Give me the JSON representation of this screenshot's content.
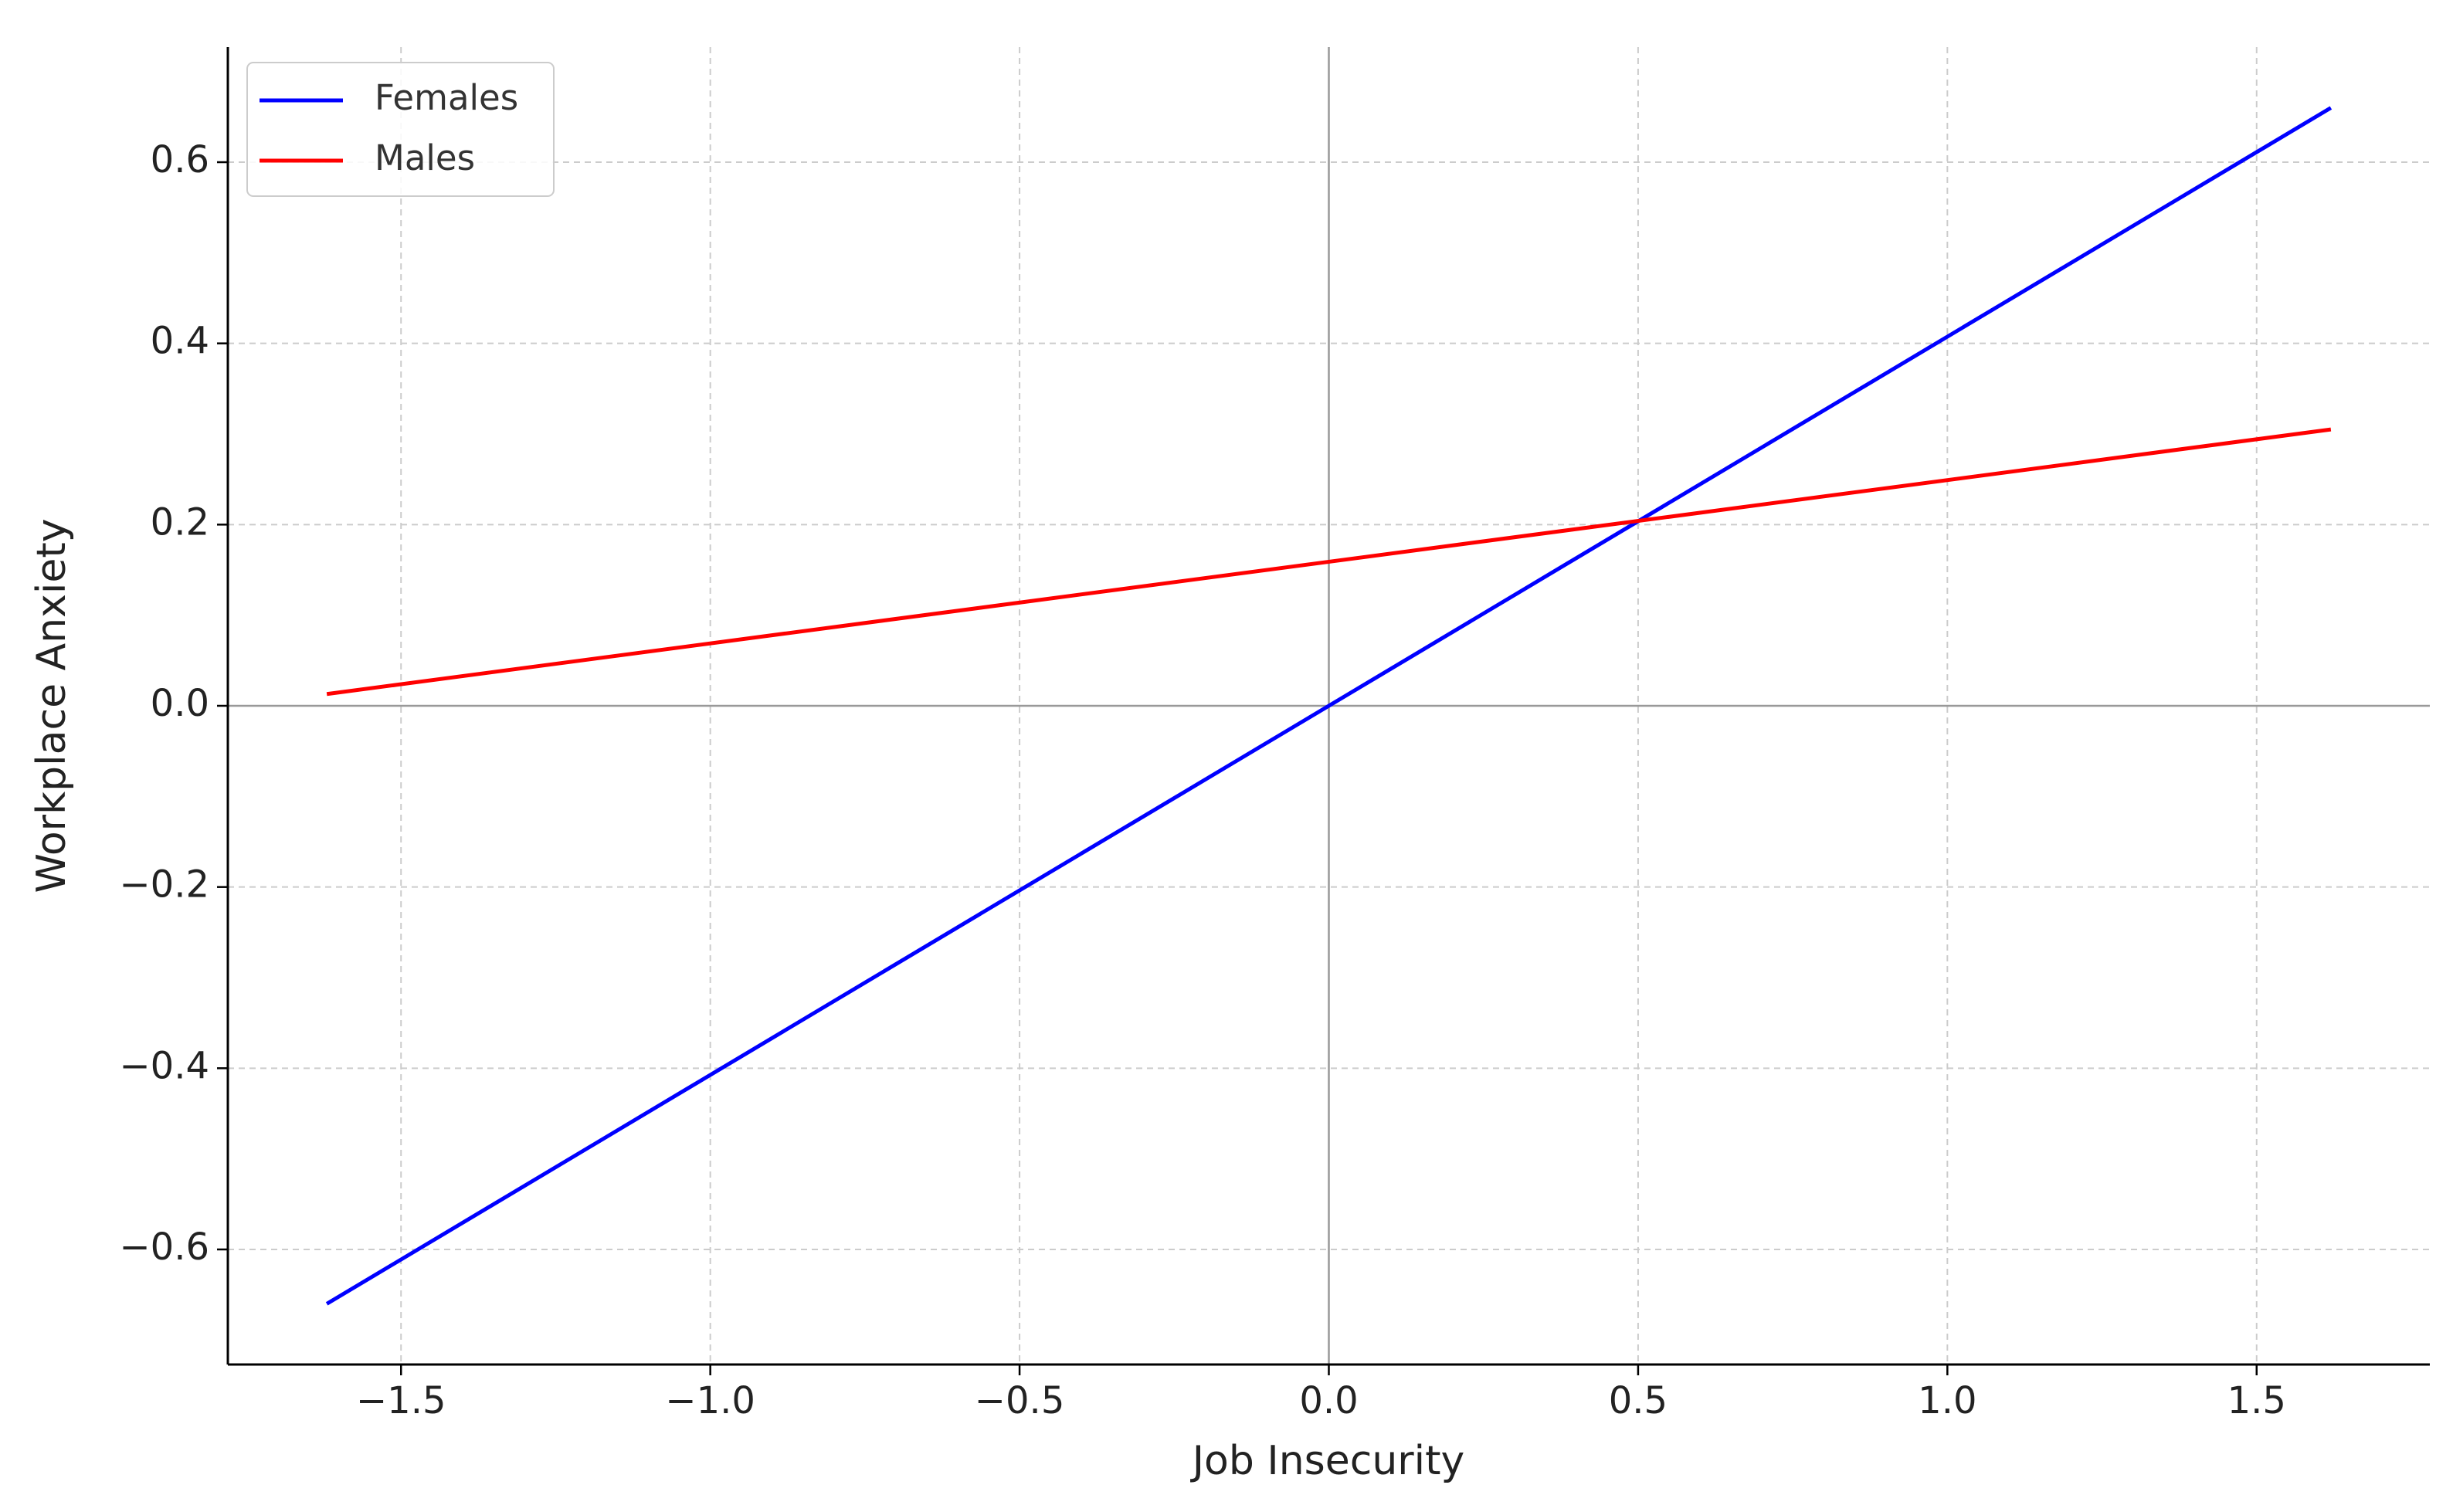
{
  "chart_data": {
    "type": "line",
    "x_label": "Job Insecurity",
    "y_label": "Workplace Anxiety",
    "x": [
      -1.62,
      1.62
    ],
    "series": [
      {
        "name": "Females",
        "color": "#0000ff",
        "values": [
          -0.66,
          0.66
        ]
      },
      {
        "name": "Males",
        "color": "#ff0000",
        "values": [
          0.013,
          0.305
        ]
      }
    ],
    "xlim": [
      -1.78,
      1.78
    ],
    "ylim": [
      -0.727,
      0.727
    ],
    "xticks": [
      {
        "value": -1.5,
        "label": "−1.5"
      },
      {
        "value": -1,
        "label": "−1.0"
      },
      {
        "value": -0.5,
        "label": "−0.5"
      },
      {
        "value": 0,
        "label": "0.0"
      },
      0.5,
      {
        "value": 1,
        "label": "1.0"
      },
      1.5
    ],
    "yticks": [
      {
        "value": -0.6,
        "label": "−0.6"
      },
      {
        "value": -0.4,
        "label": "−0.4"
      },
      {
        "value": -0.2,
        "label": "−0.2"
      },
      {
        "value": 0,
        "label": "0.0"
      },
      0.2,
      0.4,
      0.6
    ],
    "grid": true,
    "legend": "upper left"
  }
}
